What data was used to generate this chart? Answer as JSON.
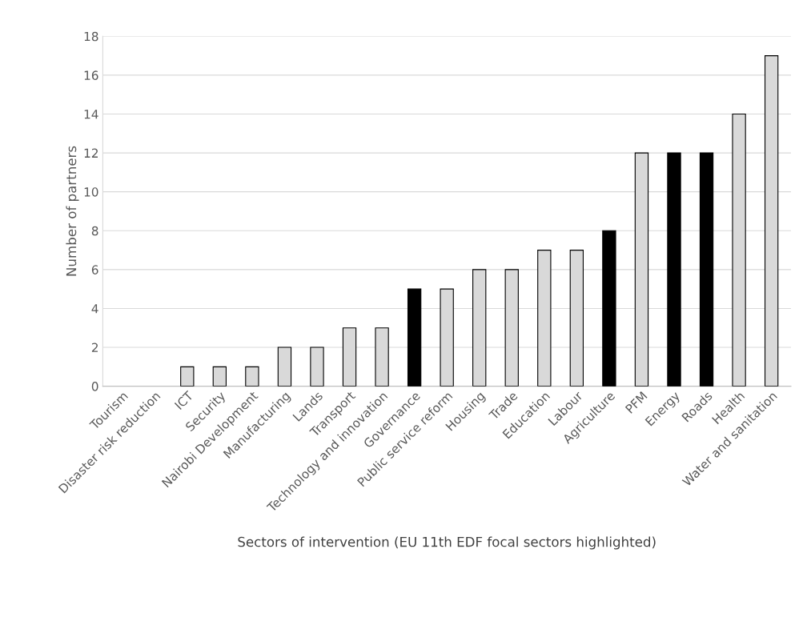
{
  "chart_data": {
    "type": "bar",
    "xlabel": "Sectors of intervention (EU 11th EDF focal sectors highlighted)",
    "ylabel": "Number of partners",
    "categories": [
      "Tourism",
      "Disaster risk reduction",
      "ICT",
      "Security",
      "Nairobi Development",
      "Manufacturing",
      "Lands",
      "Transport",
      "Technology and innovation",
      "Governance",
      "Public service reform",
      "Housing",
      "Trade",
      "Education",
      "Labour",
      "Agriculture",
      "PFM",
      "Energy",
      "Roads",
      "Health",
      "Water and sanitation"
    ],
    "values": [
      0,
      0,
      1,
      1,
      1,
      2,
      2,
      3,
      3,
      5,
      5,
      6,
      6,
      7,
      7,
      8,
      12,
      12,
      12,
      14,
      17
    ],
    "colors": [
      "#d9d9d9",
      "#d9d9d9",
      "#d9d9d9",
      "#d9d9d9",
      "#d9d9d9",
      "#d9d9d9",
      "#d9d9d9",
      "#d9d9d9",
      "#d9d9d9",
      "#000000",
      "#d9d9d9",
      "#d9d9d9",
      "#d9d9d9",
      "#d9d9d9",
      "#d9d9d9",
      "#000000",
      "#d9d9d9",
      "#000000",
      "#000000",
      "#d9d9d9",
      "#d9d9d9"
    ],
    "ylim": [
      0,
      18
    ],
    "yticks": [
      0,
      2,
      4,
      6,
      8,
      10,
      12,
      14,
      16,
      18
    ],
    "grid": "y",
    "legend": false
  }
}
